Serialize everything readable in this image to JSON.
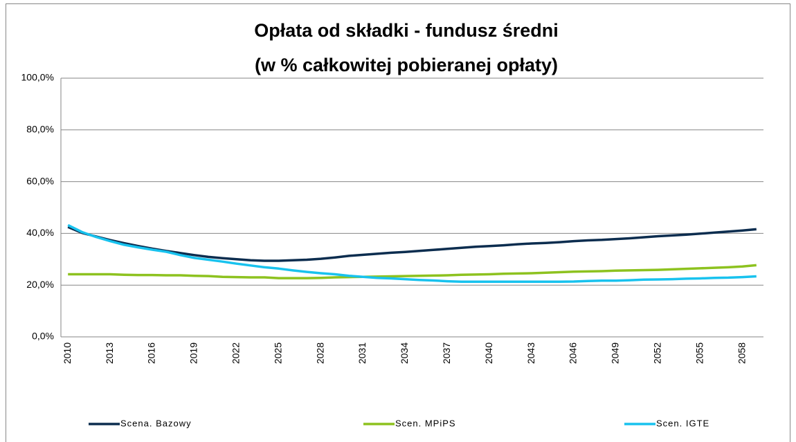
{
  "chart_data": {
    "type": "line",
    "title": [
      "Opłata od składki - fundusz średni",
      "(w % całkowitej pobieranej opłaty)"
    ],
    "categories": [
      "2010",
      null,
      null,
      "2013",
      null,
      null,
      "2016",
      null,
      null,
      "2019",
      null,
      null,
      "2022",
      null,
      null,
      "2025",
      null,
      null,
      "2028",
      null,
      null,
      "2031",
      null,
      null,
      "2034",
      null,
      null,
      "2037",
      null,
      null,
      "2040",
      null,
      null,
      "2043",
      null,
      null,
      "2046",
      null,
      null,
      "2049",
      null,
      null,
      "2052",
      null,
      null,
      "2055",
      null,
      null,
      "2058",
      null
    ],
    "series": [
      {
        "name": "Scena. Bazowy",
        "color": "#0c2d4f",
        "values": [
          42.5,
          40.2,
          38.8,
          37.4,
          36.2,
          35.1,
          34.1,
          33.2,
          32.4,
          31.6,
          30.9,
          30.4,
          30.0,
          29.6,
          29.4,
          29.4,
          29.6,
          29.8,
          30.2,
          30.7,
          31.3,
          31.7,
          32.1,
          32.5,
          32.8,
          33.2,
          33.6,
          34.0,
          34.4,
          34.8,
          35.1,
          35.4,
          35.8,
          36.1,
          36.3,
          36.6,
          37.0,
          37.3,
          37.5,
          37.8,
          38.1,
          38.5,
          38.9,
          39.2,
          39.5,
          39.9,
          40.3,
          40.7,
          41.1,
          41.6
        ]
      },
      {
        "name": "Scen. MPiPS",
        "color": "#8dc21f",
        "values": [
          24.2,
          24.2,
          24.2,
          24.2,
          24.0,
          23.9,
          23.9,
          23.8,
          23.8,
          23.6,
          23.5,
          23.2,
          23.1,
          23.0,
          23.0,
          22.7,
          22.7,
          22.7,
          22.8,
          23.0,
          23.1,
          23.2,
          23.3,
          23.4,
          23.5,
          23.6,
          23.7,
          23.8,
          24.0,
          24.1,
          24.2,
          24.4,
          24.5,
          24.6,
          24.8,
          25.0,
          25.2,
          25.3,
          25.4,
          25.6,
          25.7,
          25.8,
          25.9,
          26.1,
          26.3,
          26.5,
          26.7,
          26.9,
          27.2,
          27.7
        ]
      },
      {
        "name": "Scen. IGTE",
        "color": "#18c2ee",
        "values": [
          43.2,
          40.5,
          38.6,
          37.0,
          35.6,
          34.6,
          33.7,
          32.9,
          31.6,
          30.5,
          29.8,
          29.1,
          28.3,
          27.6,
          26.9,
          26.4,
          25.7,
          25.1,
          24.6,
          24.2,
          23.6,
          23.2,
          22.8,
          22.6,
          22.3,
          22.0,
          21.8,
          21.5,
          21.3,
          21.3,
          21.3,
          21.3,
          21.3,
          21.3,
          21.3,
          21.3,
          21.4,
          21.6,
          21.7,
          21.7,
          21.9,
          22.1,
          22.2,
          22.3,
          22.5,
          22.6,
          22.8,
          22.9,
          23.1,
          23.4
        ]
      }
    ],
    "ylim": [
      0,
      100
    ],
    "yticks": [
      {
        "value": 0,
        "label": "0,0%"
      },
      {
        "value": 20,
        "label": "20,0%"
      },
      {
        "value": 40,
        "label": "40,0%"
      },
      {
        "value": 60,
        "label": "60,0%"
      },
      {
        "value": 80,
        "label": "80,0%"
      },
      {
        "value": 100,
        "label": "100,0%"
      }
    ],
    "grid": true,
    "legend": "bottom"
  }
}
